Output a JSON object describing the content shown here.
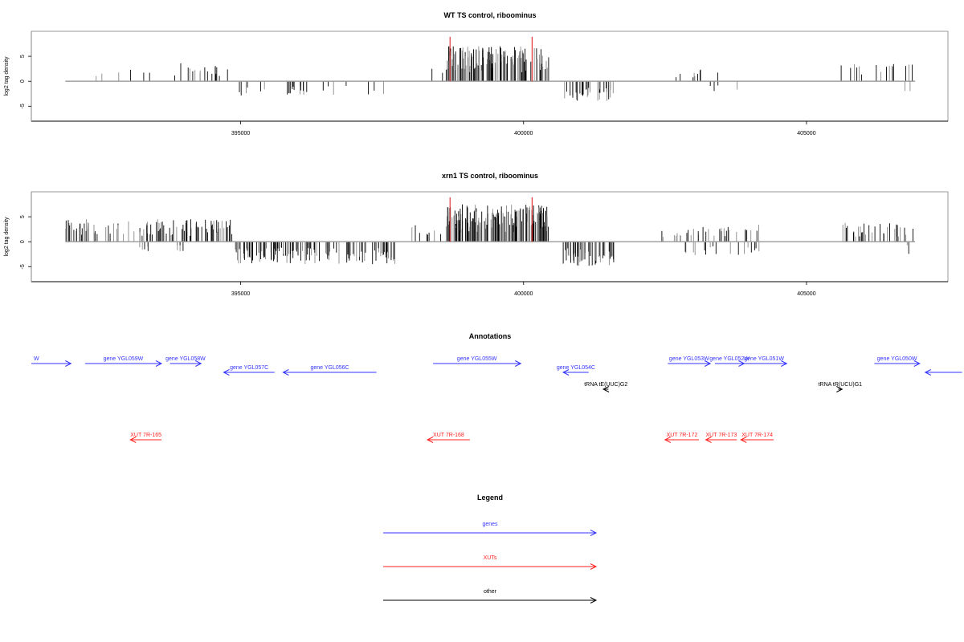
{
  "colors": {
    "gene": "#3333ff",
    "xut": "#ff2020",
    "other": "#000000",
    "bar_dark": "#000000",
    "bar_light": "#888888",
    "marker": "#dd1111",
    "axis": "#999999"
  },
  "chart_data": [
    {
      "type": "bar",
      "title": "WT TS control, riboominus",
      "ylabel": "log2 tag density",
      "xlabel": "",
      "xlim": [
        391300,
        407500
      ],
      "ylim": [
        -8,
        10
      ],
      "yticks": [
        -5,
        0,
        5
      ],
      "ytick_labels": [
        "-5",
        "0",
        "5"
      ],
      "xticks": [
        395000,
        400000,
        405000
      ],
      "xtick_labels": [
        "395000",
        "400000",
        "405000"
      ],
      "markers": [
        398700,
        400150
      ],
      "segments": [
        {
          "from": 391900,
          "to": 393900,
          "sign": 1,
          "density": 0.012,
          "amp": 2.5
        },
        {
          "from": 393900,
          "to": 394800,
          "sign": 1,
          "density": 0.06,
          "amp": 3.8
        },
        {
          "from": 394800,
          "to": 397700,
          "sign": -1,
          "density": 0.03,
          "amp": 3.0
        },
        {
          "from": 398200,
          "to": 398650,
          "sign": 1,
          "density": 0.02,
          "amp": 2.5
        },
        {
          "from": 398650,
          "to": 400450,
          "sign": 1,
          "density": 0.25,
          "amp": 7.0
        },
        {
          "from": 400700,
          "to": 401600,
          "sign": -1,
          "density": 0.12,
          "amp": 4.0
        },
        {
          "from": 402300,
          "to": 403500,
          "sign": 1,
          "density": 0.025,
          "amp": 2.5
        },
        {
          "from": 403200,
          "to": 404000,
          "sign": -1,
          "density": 0.015,
          "amp": 2.0
        },
        {
          "from": 405600,
          "to": 406900,
          "sign": 1,
          "density": 0.04,
          "amp": 3.5
        },
        {
          "from": 406500,
          "to": 406900,
          "sign": -1,
          "density": 0.015,
          "amp": 2.5
        }
      ]
    },
    {
      "type": "bar",
      "title": "xrn1 TS control, riboominus",
      "ylabel": "log2 tag density",
      "xlabel": "",
      "xlim": [
        391300,
        407500
      ],
      "ylim": [
        -8,
        10
      ],
      "yticks": [
        -5,
        0,
        5
      ],
      "ytick_labels": [
        "-5",
        "0",
        "5"
      ],
      "xticks": [
        395000,
        400000,
        405000
      ],
      "xtick_labels": [
        "395000",
        "400000",
        "405000"
      ],
      "markers": [
        398700,
        400150
      ],
      "segments": [
        {
          "from": 391900,
          "to": 394900,
          "sign": 1,
          "density": 0.12,
          "amp": 4.5
        },
        {
          "from": 393200,
          "to": 394000,
          "sign": -1,
          "density": 0.04,
          "amp": 2.0
        },
        {
          "from": 394900,
          "to": 397800,
          "sign": -1,
          "density": 0.14,
          "amp": 4.5
        },
        {
          "from": 398000,
          "to": 398650,
          "sign": 1,
          "density": 0.05,
          "amp": 3.5
        },
        {
          "from": 398650,
          "to": 400450,
          "sign": 1,
          "density": 0.3,
          "amp": 7.5
        },
        {
          "from": 400700,
          "to": 401600,
          "sign": -1,
          "density": 0.18,
          "amp": 4.8
        },
        {
          "from": 402400,
          "to": 404200,
          "sign": 1,
          "density": 0.06,
          "amp": 3.5
        },
        {
          "from": 402800,
          "to": 404200,
          "sign": -1,
          "density": 0.04,
          "amp": 3.0
        },
        {
          "from": 405600,
          "to": 406900,
          "sign": 1,
          "density": 0.08,
          "amp": 3.8
        },
        {
          "from": 406500,
          "to": 406900,
          "sign": -1,
          "density": 0.02,
          "amp": 2.5
        }
      ]
    }
  ],
  "annotations": {
    "title": "Annotations",
    "features": [
      {
        "label": "W",
        "kind": "gene",
        "strand": "+",
        "start": 391300,
        "end": 392000,
        "row": 0
      },
      {
        "label": "gene YGL059W",
        "kind": "gene",
        "strand": "+",
        "start": 392250,
        "end": 393600,
        "row": 0
      },
      {
        "label": "gene YGL058W",
        "kind": "gene",
        "strand": "+",
        "start": 393750,
        "end": 394300,
        "row": 0
      },
      {
        "label": "gene YGL057C",
        "kind": "gene",
        "strand": "-",
        "start": 394700,
        "end": 395600,
        "row": 1
      },
      {
        "label": "gene YGL056C",
        "kind": "gene",
        "strand": "-",
        "start": 395750,
        "end": 397400,
        "row": 1
      },
      {
        "label": "gene YGL055W",
        "kind": "gene",
        "strand": "+",
        "start": 398400,
        "end": 399950,
        "row": 0
      },
      {
        "label": "gene YGL054C",
        "kind": "gene",
        "strand": "-",
        "start": 400700,
        "end": 401150,
        "row": 1
      },
      {
        "label": "tRNA tE(UUC)G2",
        "kind": "other",
        "strand": "-",
        "start": 401410,
        "end": 401500,
        "row": 2
      },
      {
        "label": "gene YGL053W",
        "kind": "gene",
        "strand": "+",
        "start": 402550,
        "end": 403300,
        "row": 0
      },
      {
        "label": "gene YGL052W",
        "kind": "gene",
        "strand": "+",
        "start": 403380,
        "end": 403900,
        "row": 0
      },
      {
        "label": "gene YGL051W",
        "kind": "gene",
        "strand": "+",
        "start": 403850,
        "end": 404650,
        "row": 0
      },
      {
        "label": "tRNA tR(UCU)G1",
        "kind": "other",
        "strand": "+",
        "start": 405560,
        "end": 405630,
        "row": 2
      },
      {
        "label": "gene YGL050W",
        "kind": "gene",
        "strand": "+",
        "start": 406200,
        "end": 407000,
        "row": 0
      },
      {
        "label": "",
        "kind": "gene",
        "strand": "-",
        "start": 407100,
        "end": 407750,
        "row": 1
      },
      {
        "label": "XUT 7R-165",
        "kind": "xut",
        "strand": "-",
        "start": 393050,
        "end": 393600,
        "row": 3
      },
      {
        "label": "XUT 7R-168",
        "kind": "xut",
        "strand": "-",
        "start": 398300,
        "end": 399050,
        "row": 3
      },
      {
        "label": "XUT 7R-172",
        "kind": "xut",
        "strand": "-",
        "start": 402500,
        "end": 403100,
        "row": 3
      },
      {
        "label": "XUT 7R-173",
        "kind": "xut",
        "strand": "-",
        "start": 403220,
        "end": 403770,
        "row": 3
      },
      {
        "label": "XUT 7R-174",
        "kind": "xut",
        "strand": "-",
        "start": 403840,
        "end": 404420,
        "row": 3
      }
    ]
  },
  "legend": {
    "title": "Legend",
    "items": [
      {
        "label": "genes",
        "kind": "gene"
      },
      {
        "label": "XUTs",
        "kind": "xut"
      },
      {
        "label": "other",
        "kind": "other"
      }
    ]
  }
}
